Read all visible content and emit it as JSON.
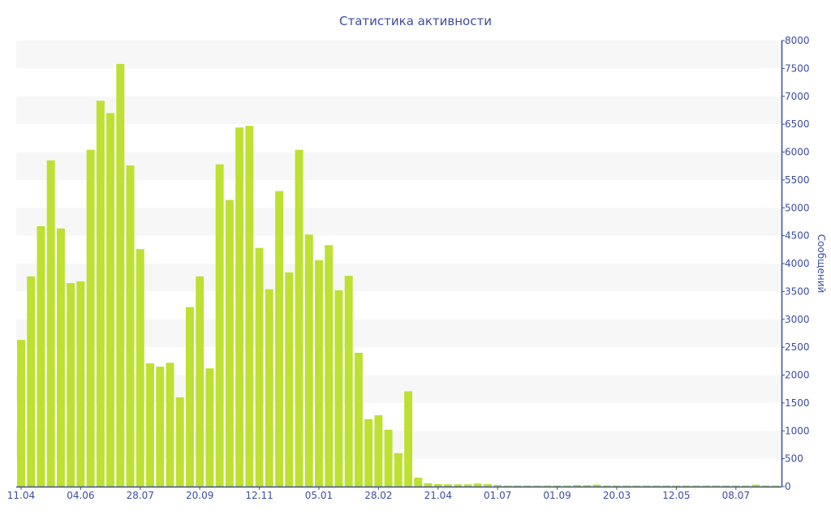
{
  "chart_data": {
    "type": "bar",
    "title": "Статистика активности",
    "xlabel": "",
    "ylabel": "Сообщений",
    "ylim": [
      0,
      8000
    ],
    "y_ticks": [
      0,
      500,
      1000,
      1500,
      2000,
      2500,
      3000,
      3500,
      4000,
      4500,
      5000,
      5500,
      6000,
      6500,
      7000,
      7500,
      8000
    ],
    "y_axis_side": "right",
    "x_tick_labels": [
      "11.04",
      "04.06",
      "28.07",
      "20.09",
      "12.11",
      "05.01",
      "28.02",
      "21.04",
      "01.07",
      "01.09",
      "20.03",
      "12.05",
      "08.07"
    ],
    "x_tick_every_n_bars": 6,
    "grid": "alternating horizontal bands",
    "legend": "none",
    "colors": {
      "bar": "#bde032",
      "text": "#3d4d9d",
      "axis": "#3d4d9d",
      "band": "#f7f7f7"
    },
    "values": [
      2630,
      3770,
      4670,
      5850,
      4630,
      3650,
      3680,
      6040,
      6920,
      6700,
      7580,
      5760,
      4260,
      2210,
      2150,
      2220,
      1600,
      3220,
      3770,
      2120,
      5780,
      5140,
      6440,
      6470,
      4280,
      3540,
      5300,
      3840,
      6040,
      4520,
      4060,
      4330,
      3520,
      3780,
      2400,
      1210,
      1280,
      1020,
      600,
      1710,
      160,
      60,
      45,
      40,
      40,
      40,
      55,
      45,
      30,
      20,
      20,
      20,
      20,
      20,
      20,
      20,
      30,
      25,
      35,
      20,
      20,
      20,
      20,
      20,
      20,
      20,
      20,
      20,
      20,
      20,
      20,
      20,
      20,
      20,
      35,
      20,
      20
    ]
  }
}
